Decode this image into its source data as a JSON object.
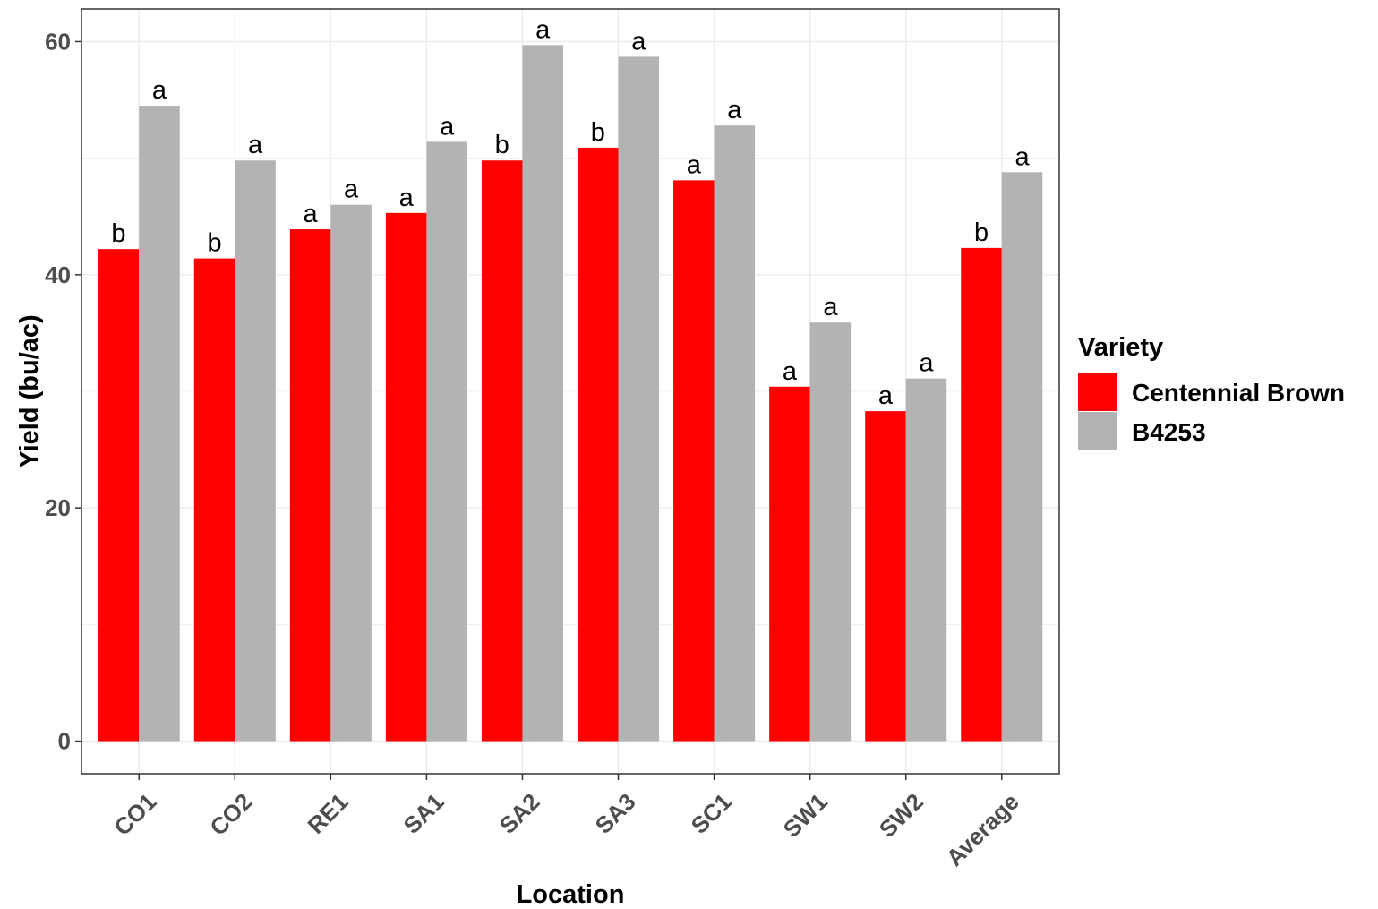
{
  "chart_data": {
    "type": "bar",
    "xlabel": "Location",
    "ylabel": "Yield (bu/ac)",
    "categories": [
      "CO1",
      "CO2",
      "RE1",
      "SA1",
      "SA2",
      "SA3",
      "SC1",
      "SW1",
      "SW2",
      "Average"
    ],
    "series": [
      {
        "name": "Centennial Brown",
        "color": "#ff0000",
        "values": [
          42.2,
          41.4,
          43.9,
          45.3,
          49.8,
          50.9,
          48.1,
          30.4,
          28.3,
          42.3
        ],
        "labels": [
          "b",
          "b",
          "a",
          "a",
          "b",
          "b",
          "a",
          "a",
          "a",
          "b"
        ]
      },
      {
        "name": "B4253",
        "color": "#b3b3b3",
        "values": [
          54.5,
          49.8,
          46.0,
          51.4,
          59.7,
          58.7,
          52.8,
          35.9,
          31.1,
          48.8
        ],
        "labels": [
          "a",
          "a",
          "a",
          "a",
          "a",
          "a",
          "a",
          "a",
          "a",
          "a"
        ]
      }
    ],
    "ylim": [
      -2.8,
      62.8
    ],
    "yticks": [
      0,
      20,
      40,
      60
    ],
    "grid": true,
    "legend": {
      "title": "Variety",
      "position": "right"
    }
  }
}
